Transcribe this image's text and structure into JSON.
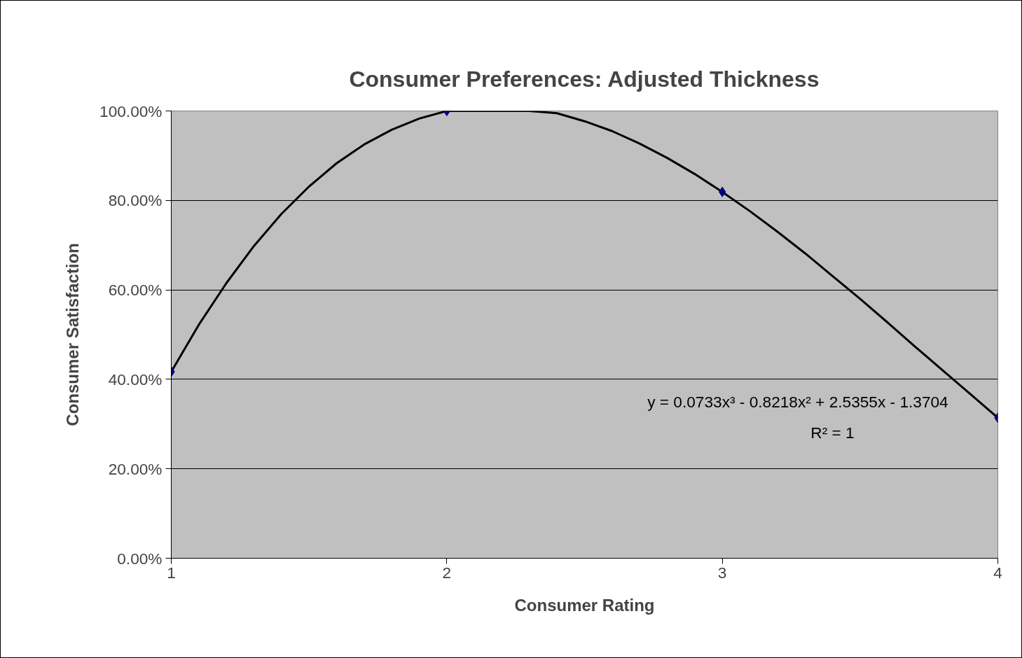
{
  "chart_data": {
    "type": "scatter",
    "title": "Consumer Preferences: Adjusted Thickness",
    "xlabel": "Consumer Rating",
    "ylabel": "Consumer Satisfaction",
    "x": [
      1,
      2,
      3,
      4
    ],
    "series": [
      {
        "color": "#000080",
        "marker": "diamond",
        "values": [
          41.7,
          100,
          81.9,
          31.4
        ]
      },
      {
        "type": "line",
        "color": "#000000",
        "line_style": "solid",
        "x": [
          1.0,
          1.1,
          1.2,
          1.3,
          1.4,
          1.5,
          1.6,
          1.7,
          1.8,
          1.9,
          2.0,
          2.1,
          2.2,
          2.3,
          2.4,
          2.5,
          2.6,
          2.7,
          2.8,
          2.9,
          3.0,
          3.1,
          3.2,
          3.3,
          3.4,
          3.5,
          3.6,
          3.7,
          3.8,
          3.9,
          4.0
        ],
        "values": [
          41.7,
          52.2,
          61.5,
          69.8,
          77.0,
          83.1,
          88.3,
          92.5,
          95.8,
          98.3,
          100,
          100,
          100,
          100,
          99.5,
          97.7,
          95.5,
          92.7,
          89.5,
          85.9,
          81.9,
          77.6,
          73.0,
          68.2,
          63.1,
          58.0,
          52.7,
          47.3,
          42.0,
          36.7,
          31.4
        ]
      }
    ],
    "xlim": [
      1,
      4
    ],
    "xticks": [
      1,
      2,
      3,
      4
    ],
    "ylim": [
      0,
      100
    ],
    "yticks": [
      {
        "value": 0,
        "label": "0.00%"
      },
      {
        "value": 20,
        "label": "20.00%"
      },
      {
        "value": 40,
        "label": "40.00%"
      },
      {
        "value": 60,
        "label": "60.00%"
      },
      {
        "value": 80,
        "label": "80.00%"
      },
      {
        "value": 100,
        "label": "100.00%"
      }
    ],
    "grid": "y",
    "annotations": [
      "y = 0.0733x³ - 0.8218x² + 2.5355x - 1.3704",
      "R² = 1"
    ]
  }
}
